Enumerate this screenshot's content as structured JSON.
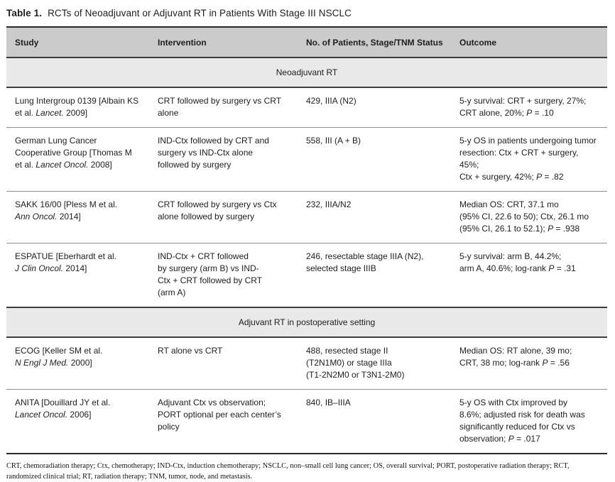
{
  "title": {
    "label": "Table 1.",
    "text": "RCTs of Neoadjuvant or Adjuvant RT in Patients With Stage III NSCLC"
  },
  "columns": [
    "Study",
    "Intervention",
    "No. of Patients, Stage/TNM Status",
    "Outcome"
  ],
  "sections": [
    {
      "header": "Neoadjuvant RT",
      "rows": [
        {
          "study": [
            {
              "t": "Lung Intergroup 0139 [Albain KS\net al. "
            },
            {
              "t": "Lancet.",
              "i": true
            },
            {
              "t": " 2009]"
            }
          ],
          "intervention": [
            {
              "t": "CRT followed by surgery vs CRT\nalone"
            }
          ],
          "patients": [
            {
              "t": "429, IIIA (N2)"
            }
          ],
          "outcome": [
            {
              "t": "5-y survival: CRT + surgery, 27%;\nCRT alone, 20%; "
            },
            {
              "t": "P",
              "i": true
            },
            {
              "t": " = .10"
            }
          ]
        },
        {
          "study": [
            {
              "t": "German Lung Cancer\nCooperative Group [Thomas M\net al. "
            },
            {
              "t": "Lancet Oncol.",
              "i": true
            },
            {
              "t": " 2008]"
            }
          ],
          "intervention": [
            {
              "t": "IND-Ctx followed by CRT and\nsurgery vs IND-Ctx alone\nfollowed by surgery"
            }
          ],
          "patients": [
            {
              "t": "558, III (A + B)"
            }
          ],
          "outcome": [
            {
              "t": "5-y OS in patients undergoing tumor\nresection: Ctx + CRT + surgery, 45%;\nCtx + surgery, 42%; "
            },
            {
              "t": "P",
              "i": true
            },
            {
              "t": " = .82"
            }
          ]
        },
        {
          "study": [
            {
              "t": "SAKK 16/00 [Pless M et al.\n"
            },
            {
              "t": "Ann Oncol.",
              "i": true
            },
            {
              "t": " 2014]"
            }
          ],
          "intervention": [
            {
              "t": "CRT followed by surgery vs Ctx\nalone followed by surgery"
            }
          ],
          "patients": [
            {
              "t": "232, IIIA/N2"
            }
          ],
          "outcome": [
            {
              "t": "Median OS: CRT, 37.1 mo\n(95% CI, 22.6 to 50); Ctx, 26.1 mo\n(95% CI, 26.1 to 52.1); "
            },
            {
              "t": "P",
              "i": true
            },
            {
              "t": " = .938"
            }
          ]
        },
        {
          "study": [
            {
              "t": "ESPATUE [Eberhardt et al.\n"
            },
            {
              "t": "J Clin Oncol.",
              "i": true
            },
            {
              "t": " 2014]"
            }
          ],
          "intervention": [
            {
              "t": "IND-Ctx + CRT followed\nby surgery (arm B) vs IND-\nCtx + CRT followed by CRT\n(arm A)"
            }
          ],
          "patients": [
            {
              "t": "246, resectable stage IIIA (N2),\nselected stage IIIB"
            }
          ],
          "outcome": [
            {
              "t": "5-y survival: arm B, 44.2%;\narm A, 40.6%; log-rank "
            },
            {
              "t": "P",
              "i": true
            },
            {
              "t": " = .31"
            }
          ]
        }
      ]
    },
    {
      "header": "Adjuvant RT in postoperative setting",
      "rows": [
        {
          "study": [
            {
              "t": "ECOG [Keller SM et al.\n"
            },
            {
              "t": "N Engl J Med.",
              "i": true
            },
            {
              "t": " 2000]"
            }
          ],
          "intervention": [
            {
              "t": "RT alone vs CRT"
            }
          ],
          "patients": [
            {
              "t": "488, resected stage II\n(T2N1M0) or stage IIIa\n(T1-2N2M0 or T3N1-2M0)"
            }
          ],
          "outcome": [
            {
              "t": "Median OS: RT alone, 39 mo;\nCRT, 38 mo; log-rank "
            },
            {
              "t": "P",
              "i": true
            },
            {
              "t": " = .56"
            }
          ]
        },
        {
          "study": [
            {
              "t": "ANITA [Douillard JY et al.\n"
            },
            {
              "t": "Lancet Oncol.",
              "i": true
            },
            {
              "t": " 2006]"
            }
          ],
          "intervention": [
            {
              "t": "Adjuvant Ctx vs observation;\nPORT optional per each center’s\npolicy"
            }
          ],
          "patients": [
            {
              "t": "840, IB–IIIA"
            }
          ],
          "outcome": [
            {
              "t": "5-y OS with Ctx improved by\n8.6%; adjusted risk for death was\nsignificantly reduced for Ctx vs\nobservation; "
            },
            {
              "t": "P",
              "i": true
            },
            {
              "t": " = .017"
            }
          ]
        }
      ]
    }
  ],
  "footnote": "CRT, chemoradiation therapy; Ctx, chemotherapy; IND-Ctx, induction chemotherapy; NSCLC, non–small cell lung cancer; OS, overall survival; PORT, postoperative radiation therapy; RCT,\nrandomized clinical trial; RT, radiation therapy; TNM, tumor, node, and metastasis.",
  "colors": {
    "header_bg": "#cbcbcb",
    "band_bg": "#e9e9e9",
    "rule_dark": "#2a2a2a",
    "rule_mid": "#3c3c3c",
    "row_divider": "#8e8e8e",
    "text": "#1d1d1d"
  }
}
